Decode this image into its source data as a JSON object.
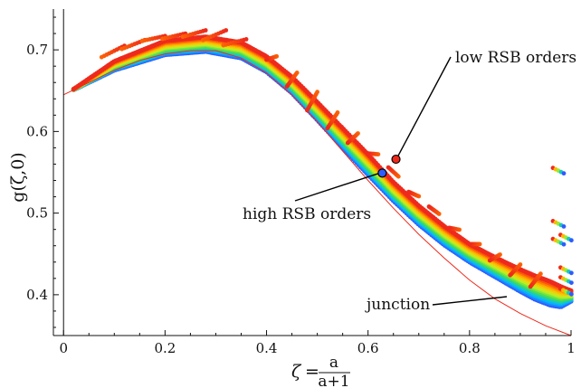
{
  "chart_data": {
    "type": "scatter",
    "xlabel": {
      "lhs": "ζ",
      "eq": "=",
      "num": "a",
      "den": "a+1"
    },
    "ylabel": "g(ζ,0)",
    "xlim": [
      -0.02,
      1.0
    ],
    "ylim": [
      0.35,
      0.75
    ],
    "x_ticks": [
      {
        "value": 0,
        "label": "0"
      },
      {
        "value": 0.2,
        "label": "0.2"
      },
      {
        "value": 0.4,
        "label": "0.4"
      },
      {
        "value": 0.6,
        "label": "0.6"
      },
      {
        "value": 0.8,
        "label": "0.8"
      },
      {
        "value": 1.0,
        "label": "1"
      }
    ],
    "y_ticks": [
      {
        "value": 0.4,
        "label": "0.4"
      },
      {
        "value": 0.5,
        "label": "0.5"
      },
      {
        "value": 0.6,
        "label": "0.6"
      },
      {
        "value": 0.7,
        "label": "0.7"
      }
    ],
    "grid": false,
    "color_scale": "rainbow: red = low RSB orders, blue = high RSB orders",
    "colors": {
      "low_order": "#ee2a1c",
      "high_order": "#2f5cff",
      "junction_curve": "#ee2a1c",
      "frame": "#111111"
    },
    "annotations": [
      {
        "name": "low-rsb",
        "text": "low RSB orders",
        "marker_x": 0.655,
        "marker_y": 0.566,
        "marker_color": "#ee2a1c"
      },
      {
        "name": "high-rsb",
        "text": "high RSB orders",
        "marker_x": 0.628,
        "marker_y": 0.549,
        "marker_color": "#2f5cff"
      },
      {
        "name": "junction",
        "text": "junction"
      }
    ],
    "series": [
      {
        "role": "junction",
        "x": [
          0.0,
          0.05,
          0.1,
          0.15,
          0.2,
          0.25,
          0.3,
          0.35,
          0.4,
          0.45,
          0.5,
          0.55,
          0.6,
          0.65,
          0.7,
          0.75,
          0.8,
          0.85,
          0.9,
          0.95,
          1.0
        ],
        "y": [
          0.645,
          0.66,
          0.675,
          0.687,
          0.695,
          0.699,
          0.699,
          0.69,
          0.672,
          0.645,
          0.612,
          0.576,
          0.54,
          0.506,
          0.474,
          0.445,
          0.418,
          0.395,
          0.377,
          0.362,
          0.35
        ]
      },
      {
        "role": "band-inner",
        "x": [
          0.02,
          0.1,
          0.2,
          0.28,
          0.35,
          0.4,
          0.45,
          0.5,
          0.55,
          0.6,
          0.65,
          0.7,
          0.75,
          0.8,
          0.85,
          0.9,
          0.93,
          0.96,
          0.98,
          1.0
        ],
        "y": [
          0.651,
          0.675,
          0.694,
          0.698,
          0.69,
          0.673,
          0.647,
          0.614,
          0.58,
          0.547,
          0.515,
          0.486,
          0.461,
          0.44,
          0.422,
          0.404,
          0.394,
          0.387,
          0.385,
          0.392
        ]
      },
      {
        "role": "band-outer",
        "x": [
          0.02,
          0.1,
          0.2,
          0.28,
          0.35,
          0.4,
          0.45,
          0.5,
          0.55,
          0.6,
          0.65,
          0.7,
          0.75,
          0.8,
          0.85,
          0.9,
          0.93,
          0.96,
          0.98,
          1.0
        ],
        "y": [
          0.652,
          0.686,
          0.711,
          0.716,
          0.709,
          0.692,
          0.667,
          0.636,
          0.604,
          0.572,
          0.538,
          0.509,
          0.484,
          0.462,
          0.446,
          0.431,
          0.423,
          0.416,
          0.41,
          0.405
        ]
      },
      {
        "role": "low-order-tips",
        "x": [
          0.12,
          0.16,
          0.2,
          0.24,
          0.28,
          0.32,
          0.36,
          0.4,
          0.44,
          0.48,
          0.52,
          0.56,
          0.6,
          0.64,
          0.68,
          0.72,
          0.76,
          0.8,
          0.84,
          0.88,
          0.92
        ],
        "y": [
          0.705,
          0.712,
          0.717,
          0.72,
          0.724,
          0.724,
          0.713,
          0.688,
          0.655,
          0.626,
          0.604,
          0.586,
          0.573,
          0.556,
          0.526,
          0.508,
          0.482,
          0.462,
          0.442,
          0.424,
          0.41
        ]
      }
    ],
    "isolated_points": [
      {
        "x": 0.975,
        "y": 0.552
      },
      {
        "x": 0.975,
        "y": 0.487
      },
      {
        "x": 0.975,
        "y": 0.465
      },
      {
        "x": 0.99,
        "y": 0.47
      },
      {
        "x": 0.99,
        "y": 0.43
      },
      {
        "x": 0.99,
        "y": 0.418
      },
      {
        "x": 0.99,
        "y": 0.404
      }
    ]
  }
}
